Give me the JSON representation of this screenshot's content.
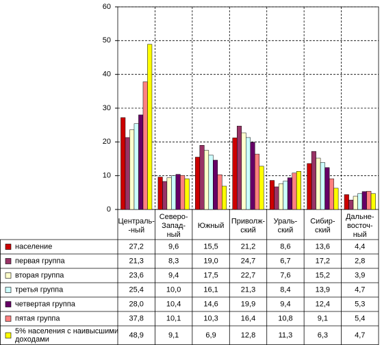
{
  "chart_data": {
    "type": "bar",
    "categories": [
      "Централь-\n-ный",
      "Северо-\nЗапад-\nный",
      "Южный",
      "Приволж-\nский",
      "Ураль-\nский",
      "Сибир-\nский",
      "Дальне-\nвосточ-\nный"
    ],
    "ylim": [
      0,
      60
    ],
    "yticks": [
      0,
      10,
      20,
      30,
      40,
      50,
      60
    ],
    "grid": true,
    "series": [
      {
        "name": "население",
        "color": "#cc0000",
        "values": [
          27.2,
          9.6,
          15.5,
          21.2,
          8.6,
          13.6,
          4.4
        ],
        "value_labels": [
          "27,2",
          "9,6",
          "15,5",
          "21,2",
          "8,6",
          "13,6",
          "4,4"
        ]
      },
      {
        "name": "первая  группа",
        "color": "#993366",
        "values": [
          21.3,
          8.3,
          19.0,
          24.7,
          6.7,
          17.2,
          2.8
        ],
        "value_labels": [
          "21,3",
          "8,3",
          "19,0",
          "24,7",
          "6,7",
          "17,2",
          "2,8"
        ]
      },
      {
        "name": "вторая  группа",
        "color": "#ffffcc",
        "values": [
          23.6,
          9.4,
          17.5,
          22.7,
          7.6,
          15.2,
          3.9
        ],
        "value_labels": [
          "23,6",
          "9,4",
          "17,5",
          "22,7",
          "7,6",
          "15,2",
          "3,9"
        ]
      },
      {
        "name": "третья группа",
        "color": "#ccffff",
        "values": [
          25.4,
          10.0,
          16.1,
          21.3,
          8.4,
          13.9,
          4.7
        ],
        "value_labels": [
          "25,4",
          "10,0",
          "16,1",
          "21,3",
          "8,4",
          "13,9",
          "4,7"
        ]
      },
      {
        "name": "четвертая группа",
        "color": "#660066",
        "values": [
          28.0,
          10.4,
          14.6,
          19.9,
          9.4,
          12.4,
          5.3
        ],
        "value_labels": [
          "28,0",
          "10,4",
          "14,6",
          "19,9",
          "9,4",
          "12,4",
          "5,3"
        ]
      },
      {
        "name": "пятая группа",
        "color": "#ff8080",
        "values": [
          37.8,
          10.1,
          10.3,
          16.4,
          10.8,
          9.1,
          5.4
        ],
        "value_labels": [
          "37,8",
          "10,1",
          "10,3",
          "16,4",
          "10,8",
          "9,1",
          "5,4"
        ]
      },
      {
        "name": "5% населения с наивысшими\nдоходами",
        "color": "#ffff00",
        "values": [
          48.9,
          9.1,
          6.9,
          12.8,
          11.3,
          6.3,
          4.7
        ],
        "value_labels": [
          "48,9",
          "9,1",
          "6,9",
          "12,8",
          "11,3",
          "6,3",
          "4,7"
        ]
      }
    ]
  }
}
